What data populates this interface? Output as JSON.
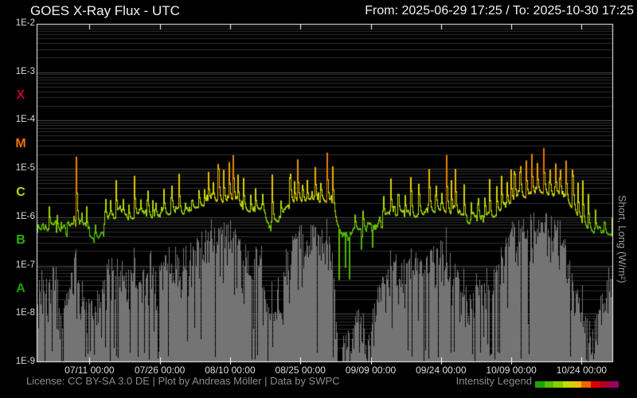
{
  "header": {
    "title": "GOES X-Ray Flux - UTC",
    "time_range": "From: 2025-06-29 17:25  /  To: 2025-10-30 17:25"
  },
  "footer": {
    "license": "License: CC BY-SA 3.0 DE | Plot by Andreas Möller | Data by SWPC",
    "legend_label": "Intensity Legend"
  },
  "right_axis_label": "Short, Long (W/m²)",
  "chart_data": {
    "type": "line",
    "title": "GOES X-Ray Flux - UTC",
    "time_from": "2025-06-29 17:25",
    "time_to": "2025-10-30 17:25",
    "y_scale": "log",
    "y_range_log10": [
      -9,
      -2
    ],
    "y_ticks": [
      "1E-2",
      "1E-3",
      "1E-4",
      "1E-5",
      "1E-6",
      "1E-7",
      "1E-8",
      "1E-9"
    ],
    "flare_classes": [
      {
        "label": "X",
        "log10_center": -3.5,
        "color": "#c00030"
      },
      {
        "label": "M",
        "log10_center": -4.5,
        "color": "#ee7000"
      },
      {
        "label": "C",
        "log10_center": -5.5,
        "color": "#c6d300"
      },
      {
        "label": "B",
        "log10_center": -6.5,
        "color": "#2db300"
      },
      {
        "label": "A",
        "log10_center": -7.5,
        "color": "#1da300"
      }
    ],
    "days_total": 123,
    "x_ticks": [
      {
        "label": "07/11 00:00",
        "day": 11.274
      },
      {
        "label": "07/26 00:00",
        "day": 26.274
      },
      {
        "label": "08/10 00:00",
        "day": 41.274
      },
      {
        "label": "08/25 00:00",
        "day": 56.274
      },
      {
        "label": "09/09 00:00",
        "day": 71.274
      },
      {
        "label": "09/24 00:00",
        "day": 86.274
      },
      {
        "label": "10/09 00:00",
        "day": 101.274
      },
      {
        "label": "10/24 00:00",
        "day": 116.274
      }
    ],
    "legend_colors": [
      "#1ca500",
      "#53c000",
      "#86cf00",
      "#c4dc00",
      "#eec000",
      "#ee6600",
      "#e00000",
      "#b00028",
      "#9c0063"
    ],
    "colormap": [
      [
        -7.4,
        "#0e8800"
      ],
      [
        -6.6,
        "#2aa400"
      ],
      [
        -6.3,
        "#4cb800"
      ],
      [
        -6.05,
        "#7cc800"
      ],
      [
        -5.8,
        "#a4d400"
      ],
      [
        -5.5,
        "#c8dc00"
      ],
      [
        -5.2,
        "#e2d000"
      ],
      [
        -5.0,
        "#ecb400"
      ],
      [
        -4.8,
        "#ee8c00"
      ],
      [
        -4.5,
        "#ee6200"
      ],
      [
        -4.1,
        "#ea2800"
      ],
      [
        -3.6,
        "#c80030"
      ],
      [
        -3.0,
        "#a0005c"
      ]
    ],
    "seed": 7,
    "series": [
      {
        "name": "Long",
        "style": "intensity-colored-line",
        "day_step": 1,
        "base_log10": [
          -6.1,
          -6.1,
          -6.15,
          -6.2,
          -6.25,
          -6.3,
          -6.28,
          -6.2,
          -6.1,
          -6.2,
          -6.3,
          -6.4,
          -6.45,
          -6.45,
          -6.25,
          -6.1,
          -6.05,
          -6.0,
          -6.0,
          -6.05,
          -6.05,
          -6.0,
          -5.95,
          -6.0,
          -6.0,
          -6.05,
          -6.0,
          -5.95,
          -5.95,
          -5.9,
          -5.95,
          -5.95,
          -5.9,
          -5.85,
          -5.8,
          -5.78,
          -5.75,
          -5.7,
          -5.68,
          -5.7,
          -5.7,
          -5.68,
          -5.7,
          -5.78,
          -5.85,
          -5.88,
          -5.9,
          -5.85,
          -5.82,
          -6.1,
          -6.18,
          -6.12,
          -6.05,
          -5.8,
          -5.72,
          -5.7,
          -5.68,
          -5.7,
          -5.72,
          -5.75,
          -5.7,
          -5.66,
          -5.7,
          -5.76,
          -6.15,
          -6.32,
          -6.38,
          -6.32,
          -6.28,
          -6.25,
          -6.3,
          -6.34,
          -6.28,
          -6.1,
          -6.05,
          -6.0,
          -5.98,
          -5.95,
          -6.0,
          -6.0,
          -6.03,
          -6.0,
          -5.96,
          -5.94,
          -5.9,
          -5.9,
          -5.86,
          -5.9,
          -5.94,
          -5.98,
          -6.0,
          -6.08,
          -6.14,
          -6.1,
          -6.06,
          -6.1,
          -6.1,
          -6.04,
          -5.95,
          -5.86,
          -5.8,
          -5.75,
          -5.7,
          -5.64,
          -5.6,
          -5.58,
          -5.54,
          -5.5,
          -5.5,
          -5.54,
          -5.58,
          -5.6,
          -5.64,
          -5.7,
          -5.8,
          -5.94,
          -6.1,
          -6.2,
          -6.28,
          -6.34,
          -6.38,
          -6.38,
          -6.36,
          -6.35
        ],
        "flares": [
          [
            2.5,
            -5.7
          ],
          [
            4.2,
            -5.9
          ],
          [
            6.5,
            -6.0
          ],
          [
            8.3,
            -4.6
          ],
          [
            9.5,
            -5.9
          ],
          [
            10.5,
            -5.7
          ],
          [
            12.3,
            -6.0
          ],
          [
            14.5,
            -5.3
          ],
          [
            15.6,
            -5.6
          ],
          [
            16.8,
            -5.18
          ],
          [
            18.3,
            -5.55
          ],
          [
            19.5,
            -5.7
          ],
          [
            20.7,
            -5.05
          ],
          [
            22.0,
            -5.5
          ],
          [
            23.5,
            -5.1
          ],
          [
            24.6,
            -5.6
          ],
          [
            25.2,
            -5.5
          ],
          [
            26.4,
            -5.7
          ],
          [
            27.0,
            -5.4
          ],
          [
            28.6,
            -5.0
          ],
          [
            30.2,
            -4.95
          ],
          [
            31.5,
            -5.6
          ],
          [
            33.0,
            -5.5
          ],
          [
            34.5,
            -5.4
          ],
          [
            35.6,
            -5.3
          ],
          [
            36.5,
            -5.0
          ],
          [
            37.5,
            -5.2
          ],
          [
            38.6,
            -4.42
          ],
          [
            39.7,
            -4.85
          ],
          [
            40.9,
            -4.7
          ],
          [
            41.8,
            -4.65
          ],
          [
            42.8,
            -5.1
          ],
          [
            44.0,
            -5.2
          ],
          [
            45.5,
            -5.5
          ],
          [
            46.5,
            -5.3
          ],
          [
            48.0,
            -5.4
          ],
          [
            50.1,
            -5.05
          ],
          [
            52.0,
            -5.6
          ],
          [
            53.9,
            -4.65
          ],
          [
            54.8,
            -5.1
          ],
          [
            55.5,
            -4.58
          ],
          [
            56.6,
            -5.2
          ],
          [
            57.5,
            -5.0
          ],
          [
            58.5,
            -5.3
          ],
          [
            59.3,
            -4.9
          ],
          [
            60.5,
            -5.2
          ],
          [
            61.8,
            -4.48
          ],
          [
            63.0,
            -4.85
          ],
          [
            67.8,
            -5.9
          ],
          [
            69.5,
            -5.8
          ],
          [
            73.8,
            -5.3
          ],
          [
            75.4,
            -5.1
          ],
          [
            77.0,
            -5.2
          ],
          [
            78.5,
            -5.5
          ],
          [
            79.7,
            -4.92
          ],
          [
            81.4,
            -5.1
          ],
          [
            83.6,
            -4.85
          ],
          [
            85.0,
            -5.0
          ],
          [
            86.2,
            -5.3
          ],
          [
            87.3,
            -4.6
          ],
          [
            88.3,
            -5.1
          ],
          [
            89.2,
            -4.92
          ],
          [
            91.0,
            -5.1
          ],
          [
            92.5,
            -5.5
          ],
          [
            94.0,
            -5.3
          ],
          [
            95.5,
            -5.45
          ],
          [
            96.5,
            -5.2
          ],
          [
            98.0,
            -5.3
          ],
          [
            99.0,
            -5.0
          ],
          [
            100.2,
            -5.2
          ],
          [
            101.0,
            -4.7
          ],
          [
            101.8,
            -4.62
          ],
          [
            103.0,
            -4.45
          ],
          [
            104.3,
            -4.8
          ],
          [
            105.5,
            -4.7
          ],
          [
            106.6,
            -4.58
          ],
          [
            108.0,
            -4.35
          ],
          [
            109.3,
            -4.7
          ],
          [
            110.5,
            -4.52
          ],
          [
            111.5,
            -4.62
          ],
          [
            112.8,
            -4.82
          ],
          [
            114.2,
            -4.55
          ],
          [
            115.3,
            -5.1
          ],
          [
            116.3,
            -4.9
          ],
          [
            117.5,
            -5.3
          ],
          [
            119.0,
            -5.6
          ],
          [
            121.0,
            -5.9
          ],
          [
            122.6,
            -5.92
          ]
        ],
        "dips": [
          [
            64.4,
            -7.4
          ],
          [
            65.8,
            -7.55
          ],
          [
            66.6,
            -7.3
          ],
          [
            69.1,
            -6.9
          ],
          [
            71.5,
            -6.7
          ]
        ]
      },
      {
        "name": "Short",
        "style": "bars",
        "color": "#747474",
        "day_step": 1,
        "max_log10": [
          -7.3,
          -7.2,
          -7.35,
          -7.25,
          -7.1,
          -7.45,
          -7.55,
          -7.3,
          -6.7,
          -7.2,
          -7.4,
          -7.6,
          -7.7,
          -7.5,
          -7.2,
          -7.0,
          -6.9,
          -7.0,
          -6.95,
          -7.1,
          -7.0,
          -6.9,
          -6.8,
          -6.95,
          -6.9,
          -7.05,
          -7.0,
          -6.85,
          -6.7,
          -6.6,
          -6.65,
          -6.8,
          -6.6,
          -6.5,
          -6.4,
          -6.3,
          -6.25,
          -6.1,
          -6.15,
          -6.1,
          -6.15,
          -6.1,
          -6.2,
          -6.45,
          -6.6,
          -6.7,
          -6.8,
          -6.6,
          -6.5,
          -7.7,
          -7.85,
          -7.6,
          -7.2,
          -6.45,
          -6.3,
          -6.2,
          -6.25,
          -6.3,
          -6.35,
          -6.3,
          -6.25,
          -6.2,
          -6.3,
          -6.4,
          -8.3,
          -8.55,
          -8.45,
          -8.25,
          -7.9,
          -7.7,
          -8.0,
          -8.2,
          -7.8,
          -7.3,
          -7.1,
          -7.0,
          -6.9,
          -7.0,
          -6.9,
          -6.8,
          -6.7,
          -6.8,
          -6.9,
          -6.7,
          -6.6,
          -6.7,
          -6.55,
          -6.5,
          -6.7,
          -6.9,
          -7.0,
          -7.3,
          -7.5,
          -7.4,
          -7.2,
          -7.4,
          -7.3,
          -7.1,
          -6.9,
          -6.7,
          -6.5,
          -6.3,
          -6.2,
          -6.1,
          -6.0,
          -5.95,
          -5.9,
          -5.85,
          -5.82,
          -5.86,
          -5.92,
          -6.0,
          -6.3,
          -6.6,
          -7.0,
          -7.4,
          -7.8,
          -8.0,
          -8.1,
          -7.9,
          -7.7,
          -7.5,
          -7.2,
          -7.0
        ]
      }
    ]
  }
}
